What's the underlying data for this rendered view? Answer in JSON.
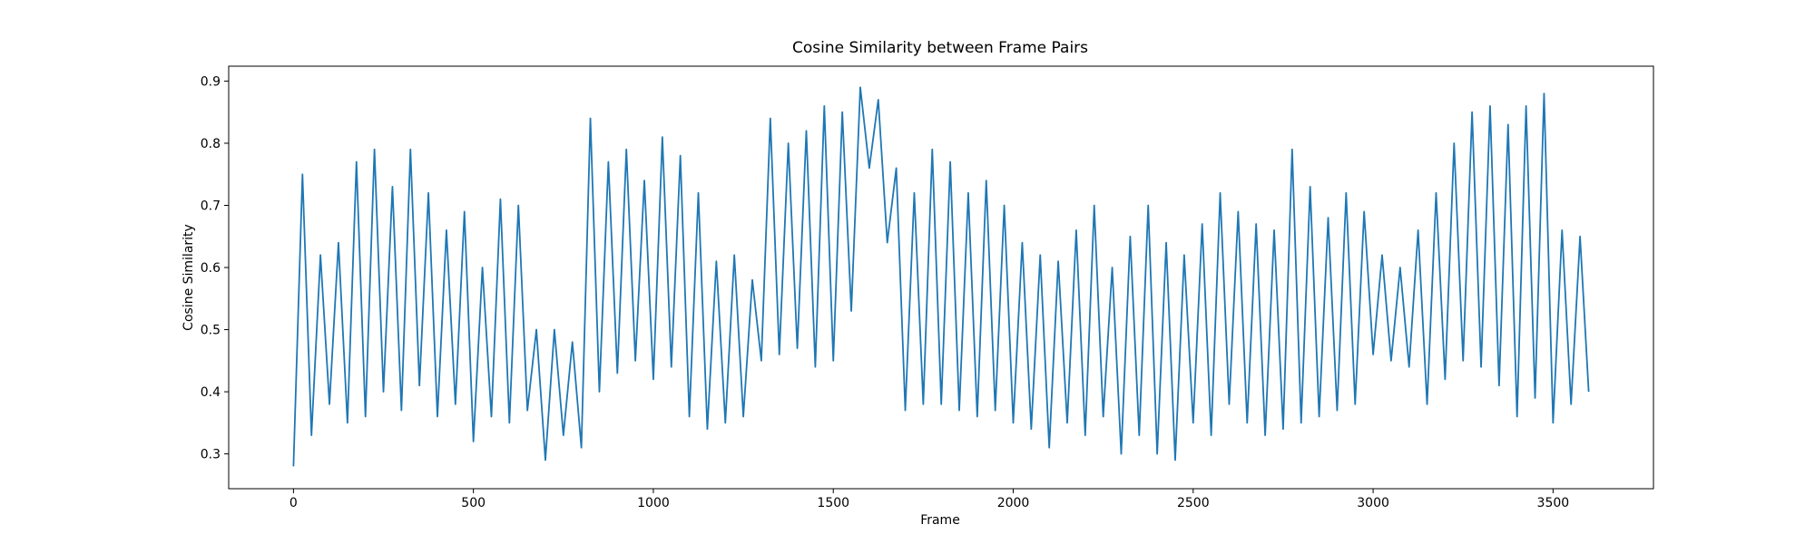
{
  "chart_data": {
    "type": "line",
    "title": "Cosine Similarity between Frame Pairs",
    "x_label": "Frame",
    "y_label": "Cosine Similarity",
    "x": [
      0,
      25,
      50,
      75,
      100,
      125,
      150,
      175,
      200,
      225,
      250,
      275,
      300,
      325,
      350,
      375,
      400,
      425,
      450,
      475,
      500,
      525,
      550,
      575,
      600,
      625,
      650,
      675,
      700,
      725,
      750,
      775,
      800,
      825,
      850,
      875,
      900,
      925,
      950,
      975,
      1000,
      1025,
      1050,
      1075,
      1100,
      1125,
      1150,
      1175,
      1200,
      1225,
      1250,
      1275,
      1300,
      1325,
      1350,
      1375,
      1400,
      1425,
      1450,
      1475,
      1500,
      1525,
      1550,
      1575,
      1600,
      1625,
      1650,
      1675,
      1700,
      1725,
      1750,
      1775,
      1800,
      1825,
      1850,
      1875,
      1900,
      1925,
      1950,
      1975,
      2000,
      2025,
      2050,
      2075,
      2100,
      2125,
      2150,
      2175,
      2200,
      2225,
      2250,
      2275,
      2300,
      2325,
      2350,
      2375,
      2400,
      2425,
      2450,
      2475,
      2500,
      2525,
      2550,
      2575,
      2600,
      2625,
      2650,
      2675,
      2700,
      2725,
      2750,
      2775,
      2800,
      2825,
      2850,
      2875,
      2900,
      2925,
      2950,
      2975,
      3000,
      3025,
      3050,
      3075,
      3100,
      3125,
      3150,
      3175,
      3200,
      3225,
      3250,
      3275,
      3300,
      3325,
      3350,
      3375,
      3400,
      3425,
      3450,
      3475,
      3500,
      3525,
      3550,
      3575,
      3599
    ],
    "series": [
      {
        "name": "Cosine Similarity",
        "color": "#1f77b4",
        "values": [
          0.28,
          0.75,
          0.33,
          0.62,
          0.38,
          0.64,
          0.35,
          0.77,
          0.36,
          0.79,
          0.4,
          0.73,
          0.37,
          0.79,
          0.41,
          0.72,
          0.36,
          0.66,
          0.38,
          0.69,
          0.32,
          0.6,
          0.36,
          0.71,
          0.35,
          0.7,
          0.37,
          0.5,
          0.29,
          0.5,
          0.33,
          0.48,
          0.31,
          0.84,
          0.4,
          0.77,
          0.43,
          0.79,
          0.45,
          0.74,
          0.42,
          0.81,
          0.44,
          0.78,
          0.36,
          0.72,
          0.34,
          0.61,
          0.35,
          0.62,
          0.36,
          0.58,
          0.45,
          0.84,
          0.46,
          0.8,
          0.47,
          0.82,
          0.44,
          0.86,
          0.45,
          0.85,
          0.53,
          0.89,
          0.76,
          0.87,
          0.64,
          0.76,
          0.37,
          0.72,
          0.38,
          0.79,
          0.38,
          0.77,
          0.37,
          0.72,
          0.36,
          0.74,
          0.37,
          0.7,
          0.35,
          0.64,
          0.34,
          0.62,
          0.31,
          0.61,
          0.35,
          0.66,
          0.33,
          0.7,
          0.36,
          0.6,
          0.3,
          0.65,
          0.33,
          0.7,
          0.3,
          0.64,
          0.29,
          0.62,
          0.35,
          0.67,
          0.33,
          0.72,
          0.38,
          0.69,
          0.35,
          0.67,
          0.33,
          0.66,
          0.34,
          0.79,
          0.35,
          0.73,
          0.36,
          0.68,
          0.37,
          0.72,
          0.38,
          0.69,
          0.46,
          0.62,
          0.45,
          0.6,
          0.44,
          0.66,
          0.38,
          0.72,
          0.42,
          0.8,
          0.45,
          0.85,
          0.44,
          0.86,
          0.41,
          0.83,
          0.36,
          0.86,
          0.39,
          0.88,
          0.35,
          0.66,
          0.38,
          0.65,
          0.4
        ]
      }
    ],
    "xlim": [
      -180,
      3779
    ],
    "ylim": [
      0.244,
      0.924
    ],
    "xticks": [
      0,
      500,
      1000,
      1500,
      2000,
      2500,
      3000,
      3500
    ],
    "yticks": [
      0.3,
      0.4,
      0.5,
      0.6,
      0.7,
      0.8,
      0.9
    ]
  }
}
